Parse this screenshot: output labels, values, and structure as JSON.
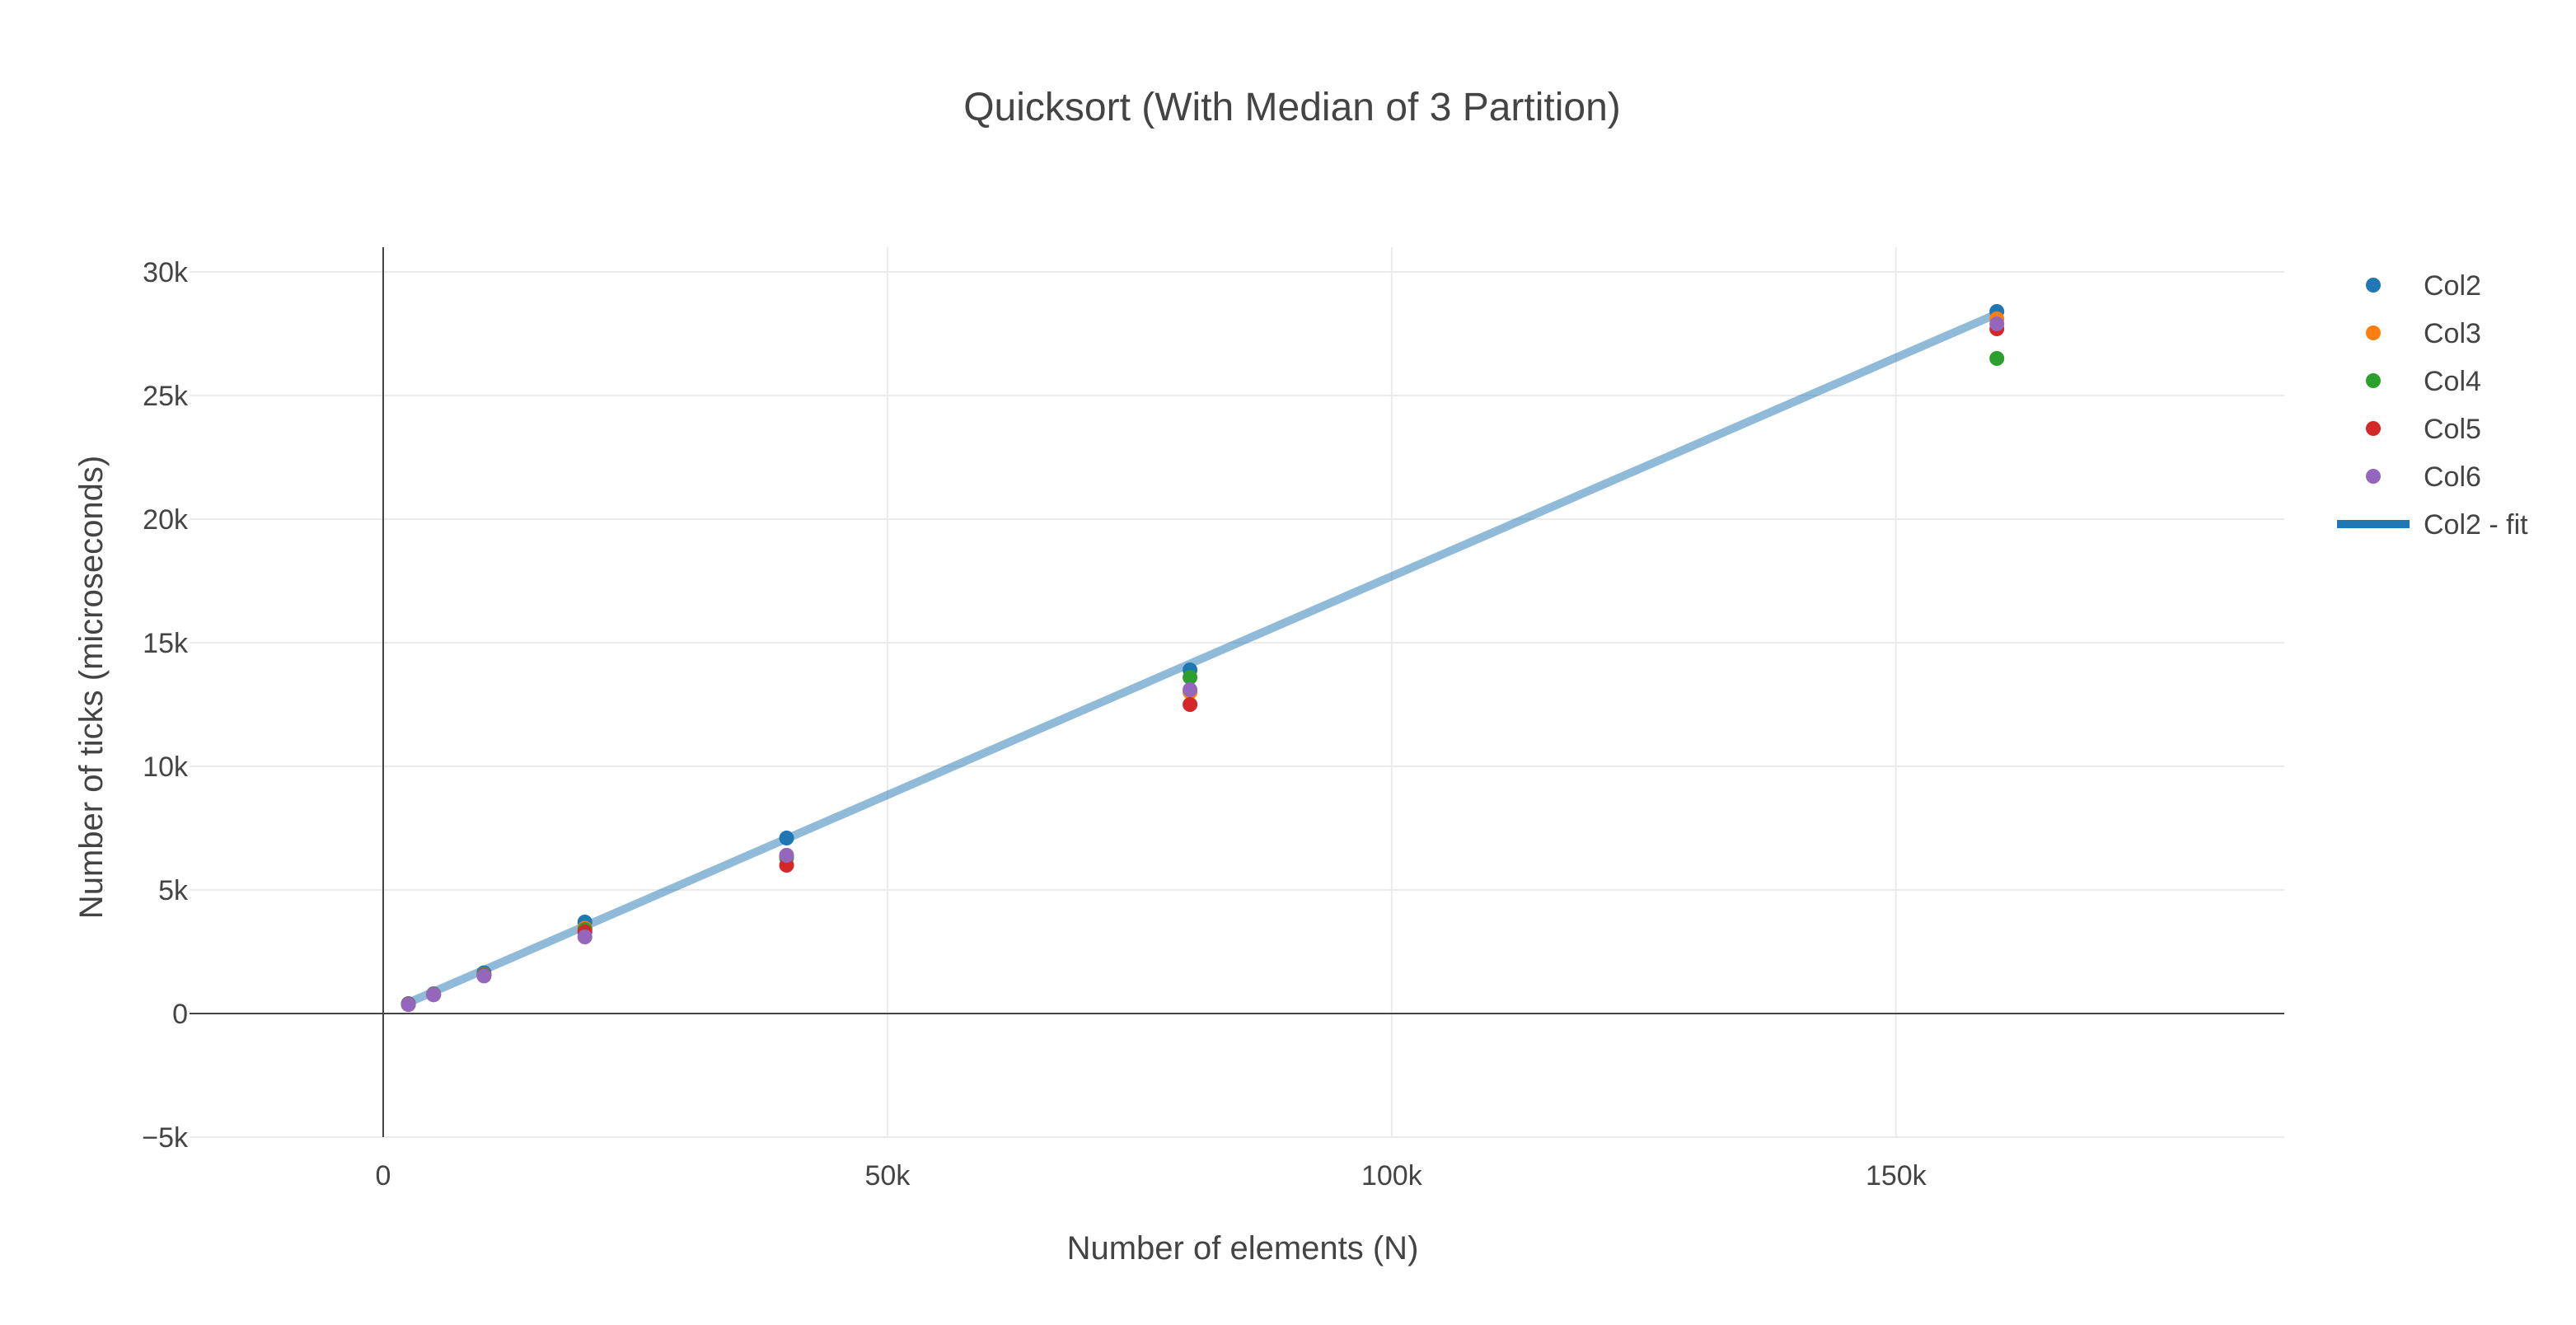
{
  "chart_data": {
    "type": "scatter",
    "title": "Quicksort (With Median of 3 Partition)",
    "xlabel": "Number of elements (N)",
    "ylabel": "Number of ticks (microseconds)",
    "xlim": [
      -19200,
      188500
    ],
    "ylim": [
      -5000,
      31000
    ],
    "x_ticks": [
      0,
      50000,
      100000,
      150000
    ],
    "x_tick_labels": [
      "0",
      "50k",
      "100k",
      "150k"
    ],
    "y_ticks": [
      -5000,
      0,
      5000,
      10000,
      15000,
      20000,
      25000,
      30000
    ],
    "y_tick_labels": [
      "−5k",
      "0",
      "5k",
      "10k",
      "15k",
      "20k",
      "25k",
      "30k"
    ],
    "grid": true,
    "legend_position": "top-right",
    "x": [
      2500,
      5000,
      10000,
      20000,
      40000,
      80000,
      160000
    ],
    "series": [
      {
        "name": "Col2",
        "mode": "markers",
        "color": "#1f77b4",
        "values": [
          400,
          800,
          1650,
          3700,
          7100,
          13900,
          28400
        ]
      },
      {
        "name": "Col3",
        "mode": "markers",
        "color": "#ff7f0e",
        "values": [
          380,
          780,
          1580,
          3450,
          6400,
          13000,
          28100
        ]
      },
      {
        "name": "Col4",
        "mode": "markers",
        "color": "#2ca02c",
        "values": [
          380,
          770,
          1570,
          3400,
          6300,
          13600,
          26500
        ]
      },
      {
        "name": "Col5",
        "mode": "markers",
        "color": "#d62728",
        "values": [
          370,
          760,
          1540,
          3300,
          6000,
          12500,
          27700
        ]
      },
      {
        "name": "Col6",
        "mode": "markers",
        "color": "#9467bd",
        "values": [
          360,
          760,
          1520,
          3100,
          6400,
          13100,
          27900
        ]
      },
      {
        "name": "Col2 - fit",
        "mode": "line",
        "color": "#1f77b4",
        "x": [
          2500,
          160000
        ],
        "values": [
          440,
          28300
        ]
      }
    ]
  }
}
